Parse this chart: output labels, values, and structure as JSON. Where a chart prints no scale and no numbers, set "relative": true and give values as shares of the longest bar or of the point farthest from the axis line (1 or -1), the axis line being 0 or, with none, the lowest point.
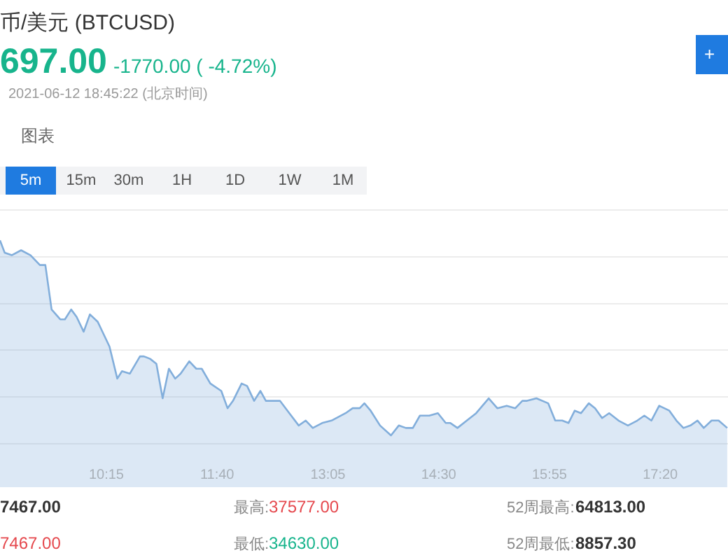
{
  "chart_data": {
    "type": "area",
    "title": "币/美元 (BTCUSD)",
    "annotations": [
      "697.00",
      "-1770.00 ( -4.72%)",
      "2021-06-12 18:45:22 (北京时间)",
      "图表",
      "5m",
      "15m",
      "30m",
      "1H",
      "1D",
      "1W",
      "1M",
      "+",
      "7467.00",
      "最高:",
      "37577.00",
      "52周最高:",
      "64813.00",
      "7467.00",
      "最低:",
      "34630.00",
      "52周最低:",
      "8857.30"
    ],
    "relative": true,
    "grid": "y",
    "xlim": [
      8.89,
      18.2
    ],
    "xticks": [
      {
        "value": 10.25,
        "label": "10:15"
      },
      {
        "value": 11.6667,
        "label": "11:40"
      },
      {
        "value": 13.0833,
        "label": "13:05"
      },
      {
        "value": 14.5,
        "label": "14:30"
      },
      {
        "value": 15.9167,
        "label": "15:55"
      },
      {
        "value": 17.3333,
        "label": "17:20"
      }
    ],
    "x": [
      8.89,
      8.95,
      9.04,
      9.16,
      9.28,
      9.4,
      9.47,
      9.55,
      9.66,
      9.72,
      9.8,
      9.87,
      9.96,
      10.04,
      10.14,
      10.29,
      10.39,
      10.45,
      10.55,
      10.68,
      10.73,
      10.81,
      10.89,
      10.97,
      11.05,
      11.13,
      11.2,
      11.31,
      11.4,
      11.47,
      11.58,
      11.72,
      11.8,
      11.87,
      11.98,
      12.05,
      12.14,
      12.22,
      12.29,
      12.47,
      12.59,
      12.71,
      12.8,
      12.89,
      13.01,
      13.13,
      13.31,
      13.4,
      13.49,
      13.55,
      13.63,
      13.75,
      13.89,
      13.99,
      14.08,
      14.17,
      14.26,
      14.38,
      14.49,
      14.59,
      14.65,
      14.74,
      14.86,
      14.98,
      15.14,
      15.25,
      15.37,
      15.48,
      15.57,
      15.63,
      15.75,
      15.9,
      15.99,
      16.08,
      16.16,
      16.24,
      16.32,
      16.42,
      16.5,
      16.59,
      16.68,
      16.8,
      16.92,
      17.04,
      17.13,
      17.22,
      17.32,
      17.45,
      17.54,
      17.63,
      17.72,
      17.81,
      17.89,
      17.99,
      18.08,
      18.19
    ],
    "series": [
      {
        "color": "#82aedb",
        "values": [
          1,
          0.95,
          0.94,
          0.96,
          0.94,
          0.9,
          0.9,
          0.72,
          0.68,
          0.68,
          0.72,
          0.69,
          0.63,
          0.7,
          0.67,
          0.57,
          0.44,
          0.47,
          0.46,
          0.53,
          0.53,
          0.52,
          0.5,
          0.36,
          0.48,
          0.44,
          0.46,
          0.51,
          0.48,
          0.48,
          0.42,
          0.39,
          0.32,
          0.35,
          0.42,
          0.41,
          0.35,
          0.39,
          0.35,
          0.35,
          0.3,
          0.25,
          0.27,
          0.24,
          0.26,
          0.27,
          0.3,
          0.32,
          0.32,
          0.34,
          0.31,
          0.25,
          0.21,
          0.25,
          0.24,
          0.24,
          0.29,
          0.29,
          0.3,
          0.26,
          0.26,
          0.24,
          0.27,
          0.3,
          0.36,
          0.32,
          0.33,
          0.32,
          0.35,
          0.35,
          0.36,
          0.34,
          0.27,
          0.27,
          0.26,
          0.31,
          0.3,
          0.34,
          0.32,
          0.28,
          0.3,
          0.27,
          0.25,
          0.27,
          0.29,
          0.27,
          0.33,
          0.31,
          0.27,
          0.24,
          0.25,
          0.27,
          0.24,
          0.27,
          0.27,
          0.24
        ]
      }
    ]
  }
}
